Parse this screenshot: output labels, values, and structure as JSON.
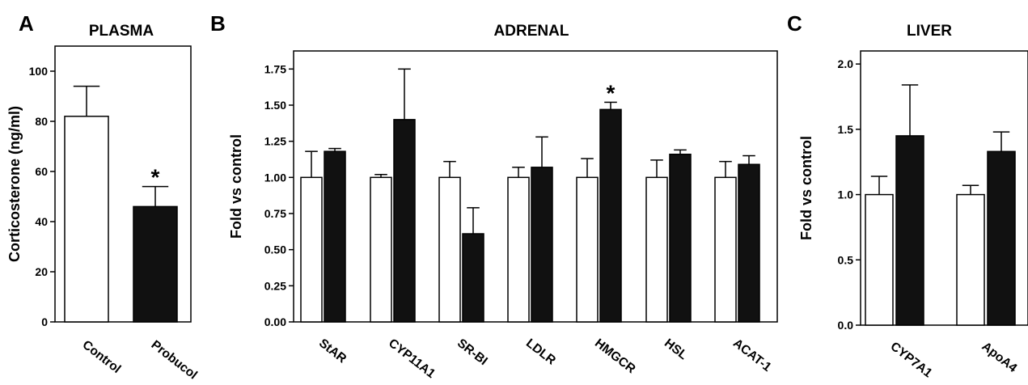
{
  "chart_data": [
    {
      "panel": "A",
      "title": "PLASMA",
      "type": "bar",
      "ylabel": "Corticosterone (ng/ml)",
      "xlabel": "",
      "ylim": [
        0,
        110
      ],
      "yticks": [
        0,
        20,
        40,
        60,
        80,
        100
      ],
      "categories": [
        "Control",
        "Probucol"
      ],
      "series": [
        {
          "values": [
            82,
            46
          ],
          "errors": [
            12,
            8
          ],
          "fills": [
            "#ffffff",
            "#111111"
          ],
          "significance": [
            "",
            "*"
          ]
        }
      ]
    },
    {
      "panel": "B",
      "title": "ADRENAL",
      "type": "bar",
      "ylabel": "Fold vs control",
      "xlabel": "",
      "ylim": [
        0,
        1.875
      ],
      "yticks": [
        "0.00",
        "0.25",
        "0.50",
        "0.75",
        "1.00",
        "1.25",
        "1.50",
        "1.75"
      ],
      "categories": [
        "StAR",
        "CYP11A1",
        "SR-BI",
        "LDLR",
        "HMGCR",
        "HSL",
        "ACAT-1"
      ],
      "series": [
        {
          "fill": "#ffffff",
          "values": [
            1.0,
            1.0,
            1.0,
            1.0,
            1.0,
            1.0,
            1.0
          ],
          "errors": [
            0.18,
            0.02,
            0.11,
            0.07,
            0.13,
            0.12,
            0.11
          ],
          "significance": [
            "",
            "",
            "",
            "",
            "",
            "",
            ""
          ]
        },
        {
          "fill": "#111111",
          "values": [
            1.18,
            1.4,
            0.61,
            1.07,
            1.47,
            1.16,
            1.09
          ],
          "errors": [
            0.02,
            0.35,
            0.18,
            0.21,
            0.05,
            0.03,
            0.06
          ],
          "significance": [
            "",
            "",
            "",
            "",
            "*",
            "",
            ""
          ]
        }
      ]
    },
    {
      "panel": "C",
      "title": "LIVER",
      "type": "bar",
      "ylabel": "Fold vs control",
      "xlabel": "",
      "ylim": [
        0,
        2.1
      ],
      "yticks": [
        "0.0",
        "0.5",
        "1.0",
        "1.5",
        "2.0"
      ],
      "categories": [
        "CYP7A1",
        "ApoA4"
      ],
      "series": [
        {
          "fill": "#ffffff",
          "values": [
            1.0,
            1.0
          ],
          "errors": [
            0.14,
            0.07
          ],
          "significance": [
            "",
            ""
          ]
        },
        {
          "fill": "#111111",
          "values": [
            1.45,
            1.33
          ],
          "errors": [
            0.39,
            0.15
          ],
          "significance": [
            "",
            ""
          ]
        }
      ]
    }
  ]
}
